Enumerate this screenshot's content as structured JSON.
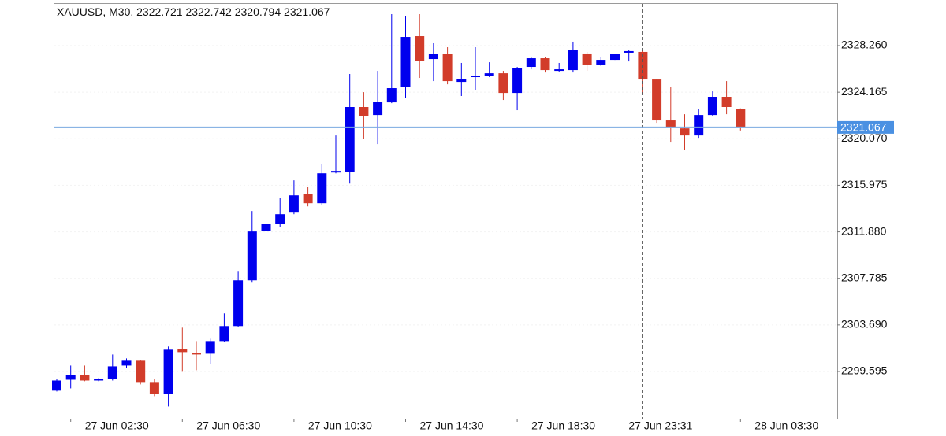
{
  "chart_data": {
    "type": "candlestick",
    "title": "XAUUSD, M30,",
    "categories": [
      null,
      "27 Jun 02:30",
      null,
      null,
      null,
      null,
      null,
      null,
      null,
      "27 Jun 06:30",
      null,
      null,
      null,
      null,
      null,
      null,
      null,
      "27 Jun 10:30",
      null,
      null,
      null,
      null,
      null,
      null,
      null,
      "27 Jun 14:30",
      null,
      null,
      null,
      null,
      null,
      null,
      null,
      "27 Jun 18:30",
      null,
      null,
      null,
      null,
      null,
      null,
      null,
      null,
      null,
      null,
      null,
      null,
      null,
      null,
      null,
      "28 Jun 03:30"
    ],
    "crosshair": {
      "label": "27 Jun 23:31",
      "category": 42
    },
    "open": [
      2297.91,
      2298.87,
      2299.29,
      2298.8,
      2298.94,
      2300.12,
      2300.54,
      2298.6,
      2297.63,
      2301.58,
      2301.23,
      2301.16,
      2302.27,
      2303.59,
      2307.61,
      2311.98,
      2312.6,
      2313.57,
      2315.23,
      2314.4,
      2317.1,
      2317.17,
      2322.86,
      2322.16,
      2323.27,
      2324.66,
      2329.09,
      2327.08,
      2327.5,
      2325.07,
      2325.49,
      2325.63,
      2325.83,
      2324.1,
      2326.39,
      2327.15,
      2326.04,
      2326.11,
      2327.57,
      2326.6,
      2327.01,
      2327.64,
      2327.71,
      2325.28,
      2321.68,
      2320.98,
      2320.36,
      2322.16,
      2323.76,
      2322.721
    ],
    "high": [
      2298.94,
      2300.12,
      2300.12,
      2299.01,
      2301.09,
      2300.75,
      2300.61,
      2298.94,
      2301.79,
      2303.45,
      2302.27,
      2302.48,
      2304.7,
      2308.44,
      2313.71,
      2313.71,
      2314.89,
      2316.41,
      2315.86,
      2317.87,
      2320.36,
      2325.77,
      2324.17,
      2326.04,
      2331.03,
      2330.89,
      2331.03,
      2328.47,
      2328.12,
      2326.74,
      2328.12,
      2326.8,
      2326.04,
      2326.39,
      2327.29,
      2327.29,
      2326.74,
      2328.61,
      2327.71,
      2327.29,
      2327.57,
      2327.91,
      2327.84,
      2325.35,
      2324.59,
      2322.23,
      2322.72,
      2324.24,
      2325.14,
      2322.742
    ],
    "low": [
      2297.84,
      2298.11,
      2298.74,
      2298.74,
      2298.8,
      2299.91,
      2298.46,
      2297.42,
      2296.52,
      2299.57,
      2299.71,
      2300.26,
      2302.2,
      2303.52,
      2307.47,
      2310.1,
      2312.32,
      2313.43,
      2314.12,
      2314.26,
      2317.03,
      2316.13,
      2320.08,
      2319.6,
      2323.2,
      2323.69,
      2325.42,
      2325.14,
      2324.86,
      2323.83,
      2324.38,
      2325.49,
      2323.48,
      2322.58,
      2326.18,
      2325.9,
      2325.97,
      2325.9,
      2326.04,
      2326.46,
      2327.01,
      2326.87,
      2323.96,
      2321.47,
      2319.74,
      2319.11,
      2320.15,
      2322.09,
      2322.23,
      2320.794
    ],
    "close": [
      2298.8,
      2299.29,
      2298.8,
      2298.94,
      2300.05,
      2300.54,
      2298.6,
      2297.63,
      2301.51,
      2301.3,
      2301.09,
      2302.27,
      2303.59,
      2307.61,
      2311.91,
      2312.6,
      2313.43,
      2315.09,
      2314.4,
      2317.03,
      2317.24,
      2322.86,
      2322.09,
      2323.34,
      2324.52,
      2329.02,
      2326.94,
      2327.5,
      2325.14,
      2325.35,
      2325.63,
      2325.83,
      2324.1,
      2326.32,
      2327.15,
      2326.11,
      2326.18,
      2327.91,
      2326.6,
      2327.01,
      2327.5,
      2327.78,
      2325.28,
      2321.68,
      2321.05,
      2320.36,
      2322.16,
      2323.76,
      2322.86,
      2321.067
    ],
    "up_color": "#0000ee",
    "down_color": "#d23c2a",
    "price_line_color": "#7aa9e0",
    "ylim": [
      2295.44,
      2332.0
    ],
    "yticks": [
      {
        "value": 2299.595,
        "label": "2299.595"
      },
      {
        "value": 2303.69,
        "label": "2303.690"
      },
      {
        "value": 2307.785,
        "label": "2307.785"
      },
      {
        "value": 2311.88,
        "label": "2311.880"
      },
      {
        "value": 2315.975,
        "label": "2315.975"
      },
      {
        "value": 2320.07,
        "label": "2320.070"
      },
      {
        "value": 2324.165,
        "label": "2324.165"
      },
      {
        "value": 2328.26,
        "label": "2328.260"
      }
    ],
    "grid": true
  }
}
